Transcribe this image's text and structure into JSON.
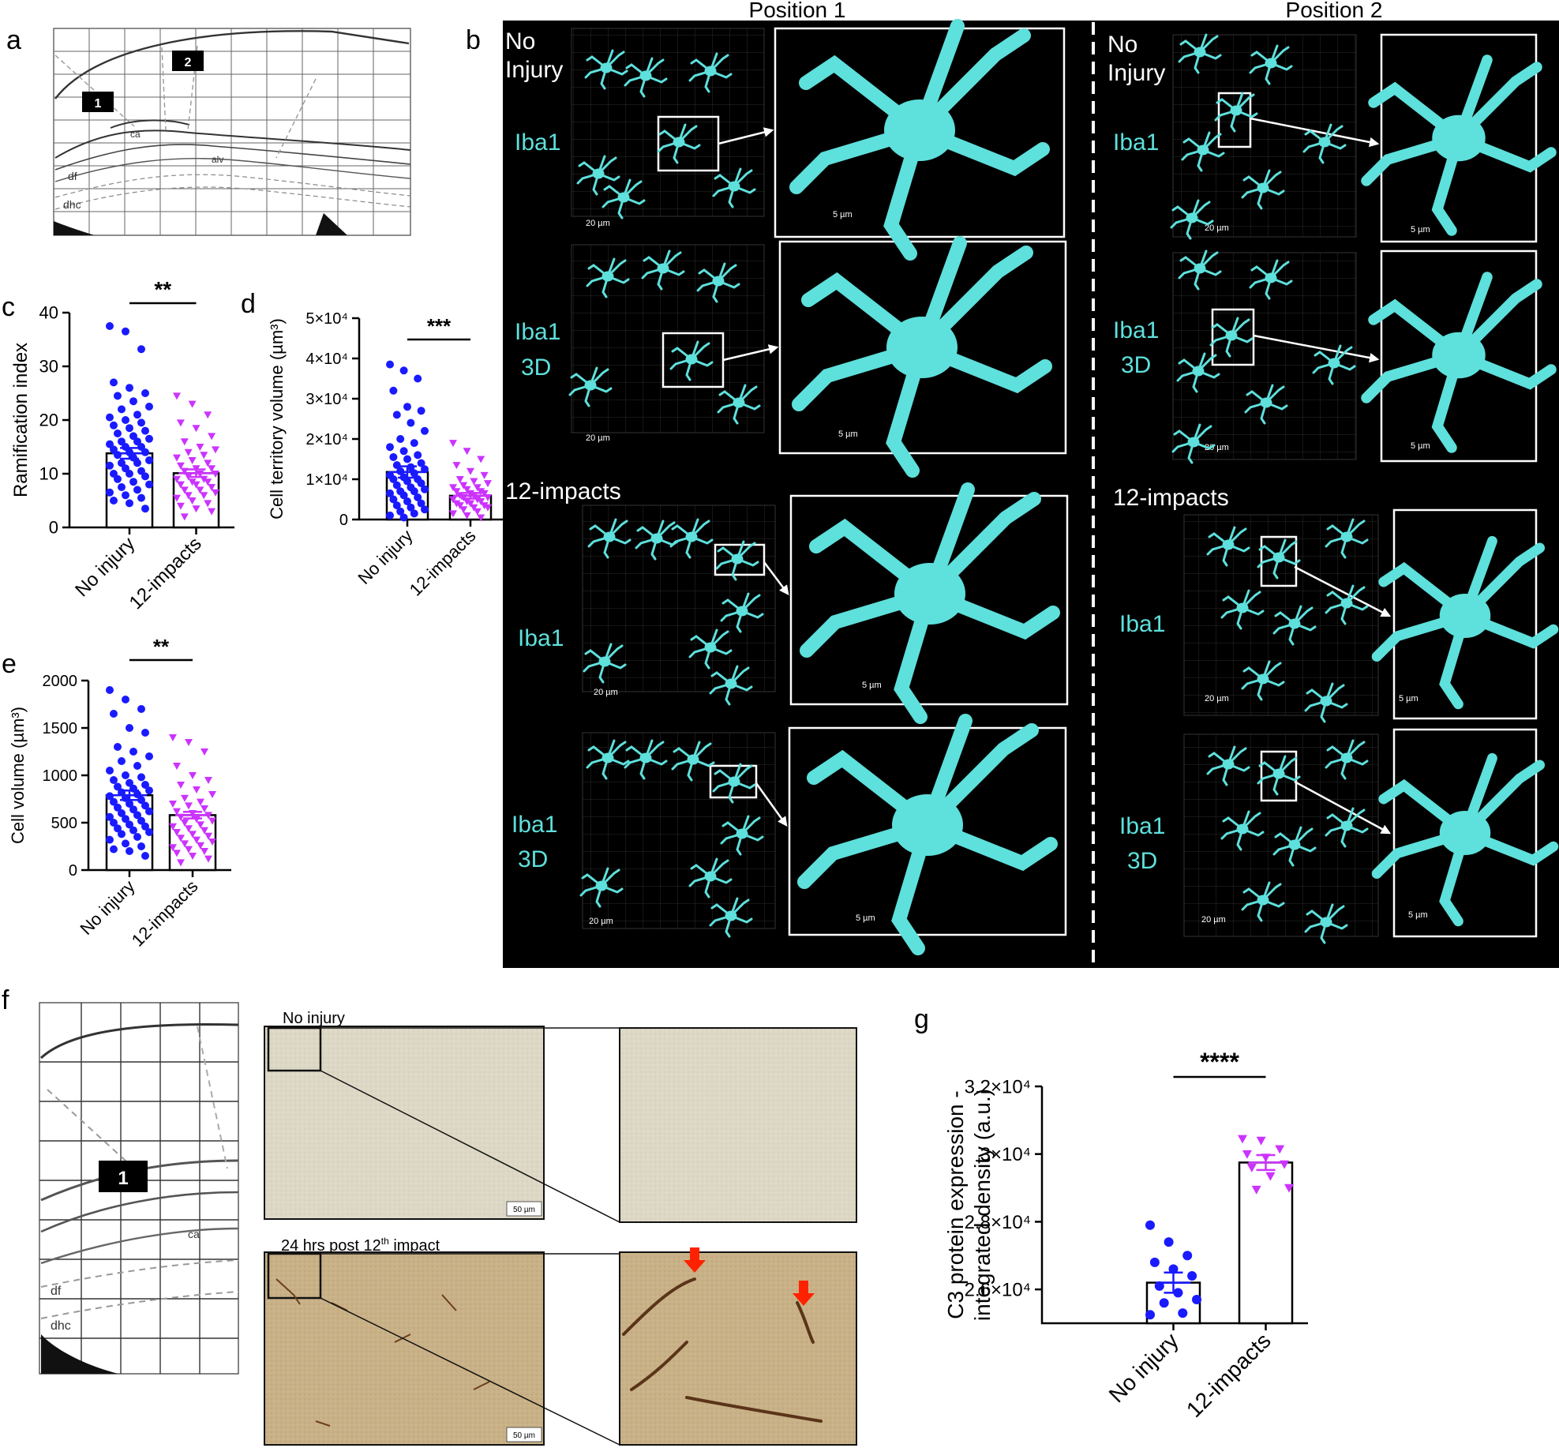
{
  "panel_labels": {
    "a": "a",
    "b": "b",
    "c": "c",
    "d": "d",
    "e": "e",
    "f": "f",
    "g": "g"
  },
  "atlas": {
    "region_1": "1",
    "region_2": "2",
    "labels": [
      "ca",
      "alv",
      "df",
      "dhc"
    ]
  },
  "microscopy": {
    "position_1": "Position 1",
    "position_2": "Position 2",
    "no_injury": [
      "No",
      "Injury"
    ],
    "impacts": "12-impacts",
    "iba1": "Iba1",
    "iba1_3d": [
      "Iba1",
      "3D"
    ],
    "scale_20": "20 µm",
    "scale_5": "5 µm"
  },
  "ihc": {
    "no_injury_label": "No injury",
    "post_label_main": "24 hrs post 12",
    "post_label_sup": "th",
    "post_label_end": " impact",
    "scale": "50 µm"
  },
  "colors": {
    "no_injury": "#1a1aff",
    "impacts": "#cc33ff",
    "cyan": "#5ee0dc",
    "arrow_red": "#ff2200"
  },
  "chart_data": [
    {
      "id": "c",
      "type": "bar",
      "ylabel": "Ramification index",
      "ylim": [
        0,
        40
      ],
      "yticks": [
        "0",
        "10",
        "20",
        "30",
        "40"
      ],
      "categories": [
        "No injury",
        "12-impacts"
      ],
      "values": [
        13.8,
        10.1
      ],
      "sem": [
        1.0,
        0.7
      ],
      "significance": "**",
      "points": [
        [
          37.5,
          36.5,
          33.2,
          27.0,
          26.0,
          25.0,
          24.5,
          23.5,
          22.5,
          22.0,
          21.0,
          20.5,
          20.0,
          19.5,
          19.0,
          18.5,
          18.0,
          17.5,
          17.0,
          16.5,
          16.0,
          16.0,
          15.5,
          15.0,
          15.0,
          14.5,
          14.0,
          14.0,
          13.5,
          13.0,
          12.5,
          12.0,
          12.0,
          11.5,
          11.0,
          10.5,
          10.0,
          10.0,
          9.5,
          9.0,
          8.5,
          8.0,
          7.5,
          7.0,
          6.5,
          6.0,
          5.5,
          5.0,
          4.5,
          3.5
        ],
        [
          24.5,
          23.0,
          21.0,
          19.5,
          18.5,
          17.0,
          16.0,
          15.0,
          14.5,
          14.0,
          13.5,
          13.0,
          12.5,
          12.0,
          11.5,
          11.0,
          11.0,
          10.5,
          10.0,
          10.0,
          9.5,
          9.0,
          9.0,
          8.5,
          8.5,
          8.0,
          8.0,
          7.5,
          7.0,
          7.0,
          6.5,
          6.0,
          6.0,
          5.5,
          5.0,
          4.5,
          4.0,
          3.5,
          3.0,
          2.0
        ]
      ]
    },
    {
      "id": "d",
      "type": "bar",
      "ylabel": "Cell territory volume (µm³)",
      "ylim": [
        0,
        50000
      ],
      "yticks": [
        "0",
        "1×10⁴",
        "2×10⁴",
        "3×10⁴",
        "4×10⁴",
        "5×10⁴"
      ],
      "categories": [
        "No injury",
        "12-impacts"
      ],
      "values": [
        11800,
        5900
      ],
      "sem": [
        1400,
        700
      ],
      "significance": "***",
      "points": [
        [
          38500,
          37000,
          35000,
          32000,
          28000,
          27000,
          26000,
          24000,
          22000,
          20000,
          19000,
          18000,
          17000,
          16000,
          15500,
          15000,
          14000,
          13500,
          13000,
          12500,
          12000,
          11500,
          11000,
          10500,
          10000,
          10000,
          9500,
          9000,
          8500,
          8000,
          7500,
          7000,
          7000,
          6500,
          6000,
          5500,
          5000,
          4500,
          4000,
          3500,
          3000,
          2500,
          2000,
          1500,
          1000,
          500
        ],
        [
          19000,
          17000,
          15000,
          13500,
          12000,
          11000,
          10000,
          9500,
          9000,
          8500,
          8000,
          8000,
          7500,
          7000,
          7000,
          6500,
          6500,
          6000,
          6000,
          5500,
          5500,
          5000,
          5000,
          4500,
          4500,
          4000,
          4000,
          3500,
          3500,
          3000,
          3000,
          2500,
          2000,
          1500,
          1000,
          500
        ]
      ]
    },
    {
      "id": "e",
      "type": "bar",
      "ylabel": "Cell volume (µm³)",
      "ylim": [
        0,
        2000
      ],
      "yticks": [
        "0",
        "500",
        "1000",
        "1500",
        "2000"
      ],
      "categories": [
        "No injury",
        "12-impacts"
      ],
      "values": [
        790,
        580
      ],
      "sem": [
        50,
        35
      ],
      "significance": "**",
      "points": [
        [
          1900,
          1800,
          1700,
          1650,
          1500,
          1450,
          1300,
          1250,
          1200,
          1150,
          1100,
          1050,
          1000,
          980,
          950,
          920,
          900,
          880,
          860,
          840,
          820,
          800,
          780,
          760,
          740,
          720,
          700,
          680,
          660,
          640,
          620,
          600,
          580,
          560,
          540,
          520,
          500,
          480,
          460,
          440,
          420,
          400,
          380,
          350,
          320,
          280,
          250,
          220,
          200,
          150
        ],
        [
          1400,
          1350,
          1250,
          1100,
          1000,
          950,
          900,
          850,
          800,
          760,
          720,
          700,
          680,
          650,
          620,
          600,
          580,
          560,
          540,
          520,
          500,
          480,
          460,
          440,
          420,
          400,
          380,
          360,
          340,
          320,
          300,
          280,
          260,
          240,
          220,
          200,
          180,
          150,
          120,
          80
        ]
      ]
    },
    {
      "id": "g",
      "type": "bar",
      "ylabel": "C3 protein expression - integrated density (a.u.)",
      "ylabel_lines": [
        "C3 protein expression -",
        "integrated density (a.u.)"
      ],
      "ylim": [
        25000,
        32000
      ],
      "yticks": [
        "2.6×10⁴",
        "2.8×10⁴",
        "3×10⁴",
        "3.2×10⁴"
      ],
      "ytick_values": [
        26000,
        28000,
        30000,
        32000
      ],
      "categories": [
        "No injury",
        "12-impacts"
      ],
      "values": [
        26200,
        29750
      ],
      "sem": [
        300,
        220
      ],
      "significance": "****",
      "points": [
        [
          27900,
          27400,
          27000,
          26800,
          26600,
          26400,
          26100,
          25900,
          25700,
          25600,
          25300,
          25250
        ],
        [
          30450,
          30400,
          30150,
          30000,
          29900,
          29700,
          29600,
          29350,
          29000,
          28950
        ]
      ]
    }
  ]
}
